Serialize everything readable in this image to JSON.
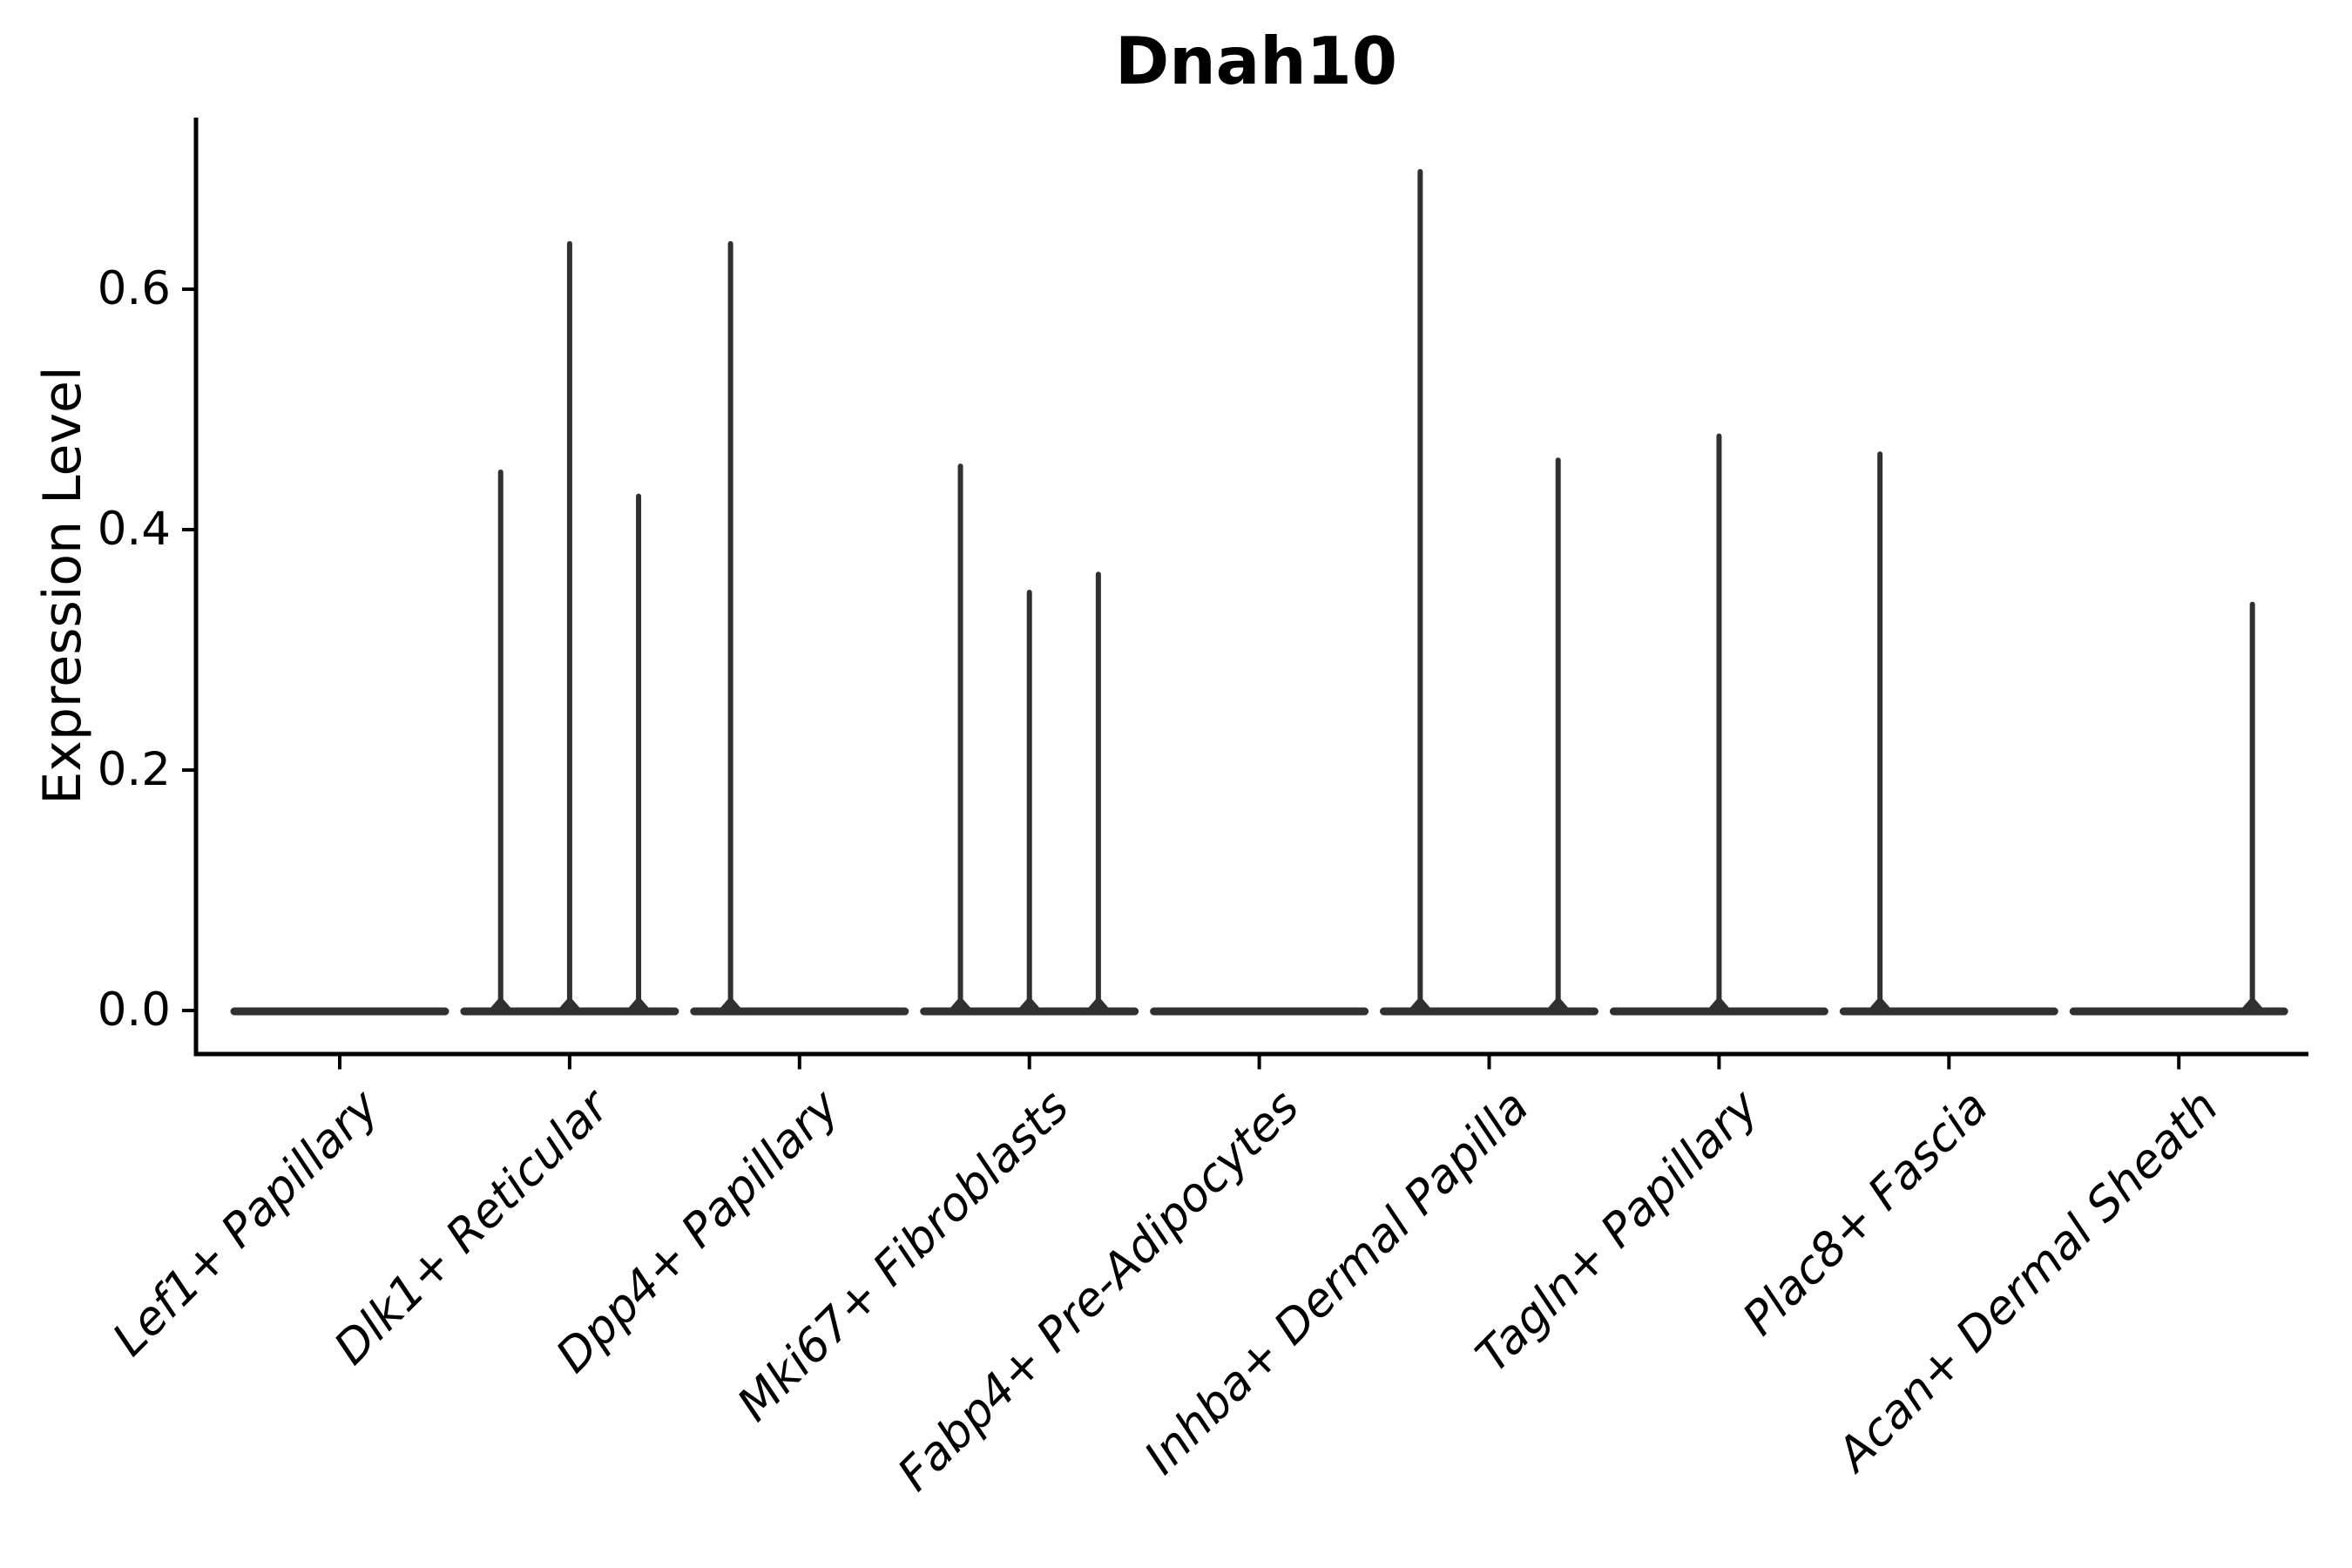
{
  "chart_data": {
    "type": "violin",
    "title": "Dnah10",
    "xlabel": "",
    "ylabel": "Expression Level",
    "categories": [
      "Lef1+ Papillary",
      "Dlk1+ Reticular",
      "Dpp4+ Papillary",
      "Mki67+ Fibroblasts",
      "Fabp4+ Pre-Adipocytes",
      "Inhba+ Dermal Papilla",
      "Tagln+ Papillary",
      "Plac8+ Fascia",
      "Acan+ Dermal Sheath"
    ],
    "y_ticks": [
      {
        "value": 0.0,
        "label": "0.0"
      },
      {
        "value": 0.2,
        "label": "0.2"
      },
      {
        "value": 0.4,
        "label": "0.4"
      },
      {
        "value": 0.6,
        "label": "0.6"
      }
    ],
    "ylim": [
      -0.036,
      0.743
    ],
    "grid": false,
    "legend": null,
    "violin_color": "#303030",
    "axis_color": "#000000",
    "violins": [
      {
        "category": "Lef1+ Papillary",
        "baseline_value": 0.0,
        "spikes": []
      },
      {
        "category": "Dlk1+ Reticular",
        "baseline_value": 0.0,
        "spikes": [
          {
            "offset": -0.3,
            "value": 0.45
          },
          {
            "offset": 0.0,
            "value": 0.64
          },
          {
            "offset": 0.3,
            "value": 0.43
          }
        ]
      },
      {
        "category": "Dpp4+ Papillary",
        "baseline_value": 0.0,
        "spikes": [
          {
            "offset": -0.3,
            "value": 0.64
          }
        ]
      },
      {
        "category": "Mki67+ Fibroblasts",
        "baseline_value": 0.0,
        "spikes": [
          {
            "offset": -0.3,
            "value": 0.455
          },
          {
            "offset": 0.0,
            "value": 0.35
          },
          {
            "offset": 0.3,
            "value": 0.365
          }
        ]
      },
      {
        "category": "Fabp4+ Pre-Adipocytes",
        "baseline_value": 0.0,
        "spikes": []
      },
      {
        "category": "Inhba+ Dermal Papilla",
        "baseline_value": 0.0,
        "spikes": [
          {
            "offset": -0.3,
            "value": 0.7
          },
          {
            "offset": 0.3,
            "value": 0.46
          }
        ]
      },
      {
        "category": "Tagln+ Papillary",
        "baseline_value": 0.0,
        "spikes": [
          {
            "offset": 0.0,
            "value": 0.48
          }
        ]
      },
      {
        "category": "Plac8+ Fascia",
        "baseline_value": 0.0,
        "spikes": [
          {
            "offset": -0.3,
            "value": 0.465
          }
        ]
      },
      {
        "category": "Acan+ Dermal Sheath",
        "baseline_value": 0.0,
        "spikes": [
          {
            "offset": 0.32,
            "value": 0.34
          }
        ]
      }
    ]
  }
}
